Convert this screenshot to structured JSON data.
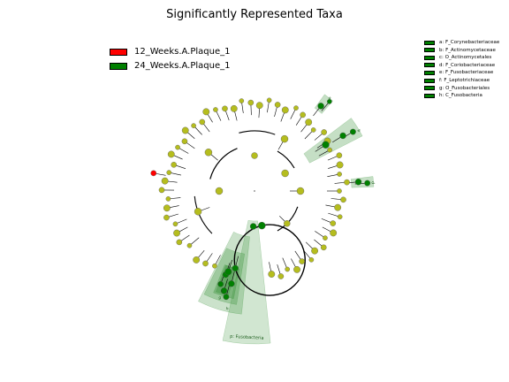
{
  "title": "Significantly Represented Taxa",
  "legend_groups": [
    {
      "label": "12_Weeks.A.Plaque_1",
      "color": "#ff0000"
    },
    {
      "label": "24_Weeks.A.Plaque_1",
      "color": "#008000"
    }
  ],
  "legend_taxa": [
    {
      "label": "a: F_Corynebacteriaceae",
      "color": "#008000"
    },
    {
      "label": "b: F_Actinomycetaceae",
      "color": "#008000"
    },
    {
      "label": "c: O_Actinomycetales",
      "color": "#008000"
    },
    {
      "label": "d: F_Coriobacteriaceae",
      "color": "#008000"
    },
    {
      "label": "e: F_Fusobacteriaceae",
      "color": "#008000"
    },
    {
      "label": "f: F_Leptotrichiaceae",
      "color": "#008000"
    },
    {
      "label": "g: O_Fusobacteriales",
      "color": "#008000"
    },
    {
      "label": "h: C_Fusobacteria",
      "color": "#008000"
    }
  ],
  "clade_labels": {
    "a": "a",
    "b": "b",
    "d": "d",
    "e": "e",
    "f": "f",
    "g": "g",
    "h": "h",
    "phylum": "p: Fusobacteria"
  },
  "colors": {
    "node_default": "#b5bd1e",
    "node_green": "#008000",
    "node_red": "#ff0000",
    "highlight": "#2e8b2e",
    "branch": "#000000"
  }
}
